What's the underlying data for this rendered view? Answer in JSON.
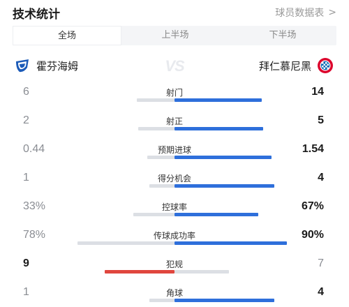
{
  "header": {
    "title": "技术统计",
    "report_link": "球员数据表",
    "chevron": ">"
  },
  "tabs": [
    {
      "label": "全场",
      "active": true
    },
    {
      "label": "上半场",
      "active": false
    },
    {
      "label": "下半场",
      "active": false
    }
  ],
  "teams": {
    "home": {
      "name": "霍芬海姆",
      "logo": "hoffenheim-logo"
    },
    "away": {
      "name": "拜仁慕尼黑",
      "logo": "bayern-logo"
    },
    "vs": "VS"
  },
  "colors": {
    "home_lead": "#e0463e",
    "away_lead": "#2e6fdb",
    "trail": "#dcdfe4"
  },
  "stats": [
    {
      "label": "射门",
      "home": "6",
      "away": "14",
      "home_share": 0.3,
      "away_share": 0.7,
      "leader": "away"
    },
    {
      "label": "射正",
      "home": "2",
      "away": "5",
      "home_share": 0.29,
      "away_share": 0.71,
      "leader": "away"
    },
    {
      "label": "预期进球",
      "home": "0.44",
      "away": "1.54",
      "home_share": 0.22,
      "away_share": 0.78,
      "leader": "away"
    },
    {
      "label": "得分机会",
      "home": "1",
      "away": "4",
      "home_share": 0.2,
      "away_share": 0.8,
      "leader": "away"
    },
    {
      "label": "控球率",
      "home": "33%",
      "away": "67%",
      "home_share": 0.33,
      "away_share": 0.67,
      "leader": "away"
    },
    {
      "label": "传球成功率",
      "home": "78%",
      "away": "90%",
      "home_share": 0.78,
      "away_share": 0.9,
      "leader": "away"
    },
    {
      "label": "犯规",
      "home": "9",
      "away": "7",
      "home_share": 0.56,
      "away_share": 0.44,
      "leader": "home"
    },
    {
      "label": "角球",
      "home": "1",
      "away": "4",
      "home_share": 0.2,
      "away_share": 0.8,
      "leader": "away"
    }
  ]
}
